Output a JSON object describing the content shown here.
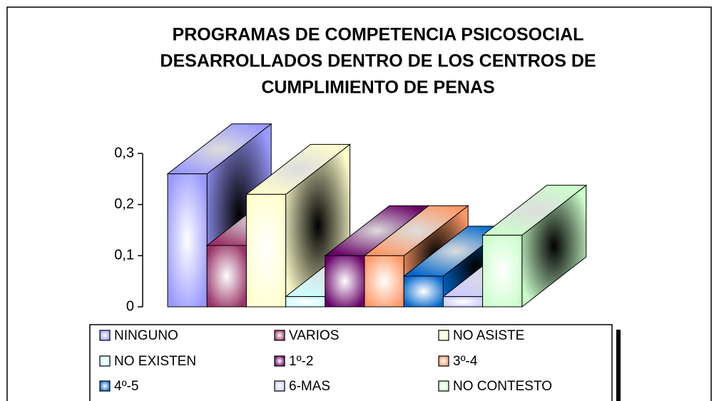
{
  "chart_data": {
    "type": "bar3d",
    "title": [
      "PROGRAMAS DE COMPETENCIA  PSICOSOCIAL",
      "DESARROLLADOS DENTRO DE LOS CENTROS DE",
      "CUMPLIMIENTO DE PENAS"
    ],
    "categories": [
      "NINGUNO",
      "VARIOS",
      "NO ASISTE",
      "NO EXISTEN",
      "1º-2",
      "3º-4",
      "4º-5",
      "6-MAS",
      "NO CONTESTO"
    ],
    "values": [
      0.26,
      0.12,
      0.22,
      0.02,
      0.1,
      0.1,
      0.06,
      0.02,
      0.14
    ],
    "colors": [
      "#9999ff",
      "#993366",
      "#ffffcc",
      "#ccffff",
      "#660066",
      "#ff9966",
      "#0066cc",
      "#ccccff",
      "#ccffcc"
    ],
    "ylim": [
      0,
      0.3
    ],
    "yticks": [
      0,
      {
        "value": 0.1,
        "label": "0,1"
      },
      {
        "value": 0.2,
        "label": "0,2"
      },
      {
        "value": 0.3,
        "label": "0,3"
      }
    ],
    "legend": "bottom"
  }
}
